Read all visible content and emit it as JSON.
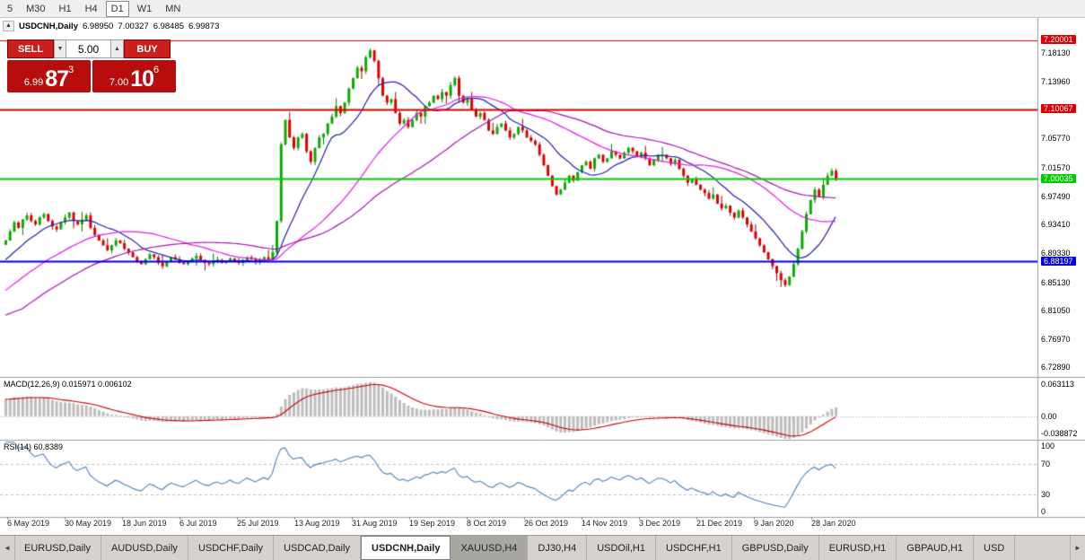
{
  "toolbar": {
    "timeframes": [
      "5",
      "M30",
      "H1",
      "H4",
      "D1",
      "W1",
      "MN"
    ],
    "active": "D1"
  },
  "chart_header": {
    "collapse": "▲",
    "title": "USDCNH,Daily",
    "open": "6.98950",
    "high": "7.00327",
    "low": "6.98485",
    "close": "6.99873"
  },
  "trade_panel": {
    "sell": "SELL",
    "buy": "BUY",
    "volume": "5.00",
    "dec": "▼",
    "inc": "▲",
    "bid": {
      "small": "6.99",
      "big": "87",
      "sup": "3"
    },
    "ask": {
      "small": "7.00",
      "big": "10",
      "sup": "6"
    }
  },
  "indicators": {
    "macd": "MACD(12,26,9) 0.015971 0.006102",
    "rsi": "RSI(14) 60.8389"
  },
  "price_axis": [
    {
      "text": "7.20001",
      "style": "red"
    },
    {
      "text": "7.18130",
      "style": "plain"
    },
    {
      "text": "7.13960",
      "style": "plain"
    },
    {
      "text": "7.10067",
      "style": "red"
    },
    {
      "text": "7.05770",
      "style": "plain"
    },
    {
      "text": "7.01570",
      "style": "plain"
    },
    {
      "text": "7.00035",
      "style": "green"
    },
    {
      "text": "6.97490",
      "style": "plain"
    },
    {
      "text": "6.93410",
      "style": "plain"
    },
    {
      "text": "6.89330",
      "style": "plain"
    },
    {
      "text": "6.88197",
      "style": "blue"
    },
    {
      "text": "6.85130",
      "style": "plain"
    },
    {
      "text": "6.81050",
      "style": "plain"
    },
    {
      "text": "6.76970",
      "style": "plain"
    },
    {
      "text": "6.72890",
      "style": "plain"
    }
  ],
  "macd_axis": {
    "top": "0.063113",
    "zero": "0.00",
    "bottom": "-0.038872"
  },
  "rsi_axis": [
    "100",
    "70",
    "30",
    "0"
  ],
  "dates": [
    "6 May 2019",
    "30 May 2019",
    "18 Jun 2019",
    "6 Jul 2019",
    "25 Jul 2019",
    "13 Aug 2019",
    "31 Aug 2019",
    "19 Sep 2019",
    "8 Oct 2019",
    "26 Oct 2019",
    "14 Nov 2019",
    "3 Dec 2019",
    "21 Dec 2019",
    "9 Jan 2020",
    "28 Jan 2020"
  ],
  "tabs": [
    {
      "label": "EURUSD,Daily",
      "state": "normal"
    },
    {
      "label": "AUDUSD,Daily",
      "state": "normal"
    },
    {
      "label": "USDCHF,Daily",
      "state": "normal"
    },
    {
      "label": "USDCAD,Daily",
      "state": "normal"
    },
    {
      "label": "USDCNH,Daily",
      "state": "active"
    },
    {
      "label": "XAUUSD,H4",
      "state": "dark"
    },
    {
      "label": "DJ30,H4",
      "state": "normal"
    },
    {
      "label": "USDOil,H1",
      "state": "normal"
    },
    {
      "label": "USDCHF,H1",
      "state": "normal"
    },
    {
      "label": "GBPUSD,Daily",
      "state": "normal"
    },
    {
      "label": "EURUSD,H1",
      "state": "normal"
    },
    {
      "label": "GBPAUD,H1",
      "state": "normal"
    },
    {
      "label": "USD",
      "state": "normal"
    }
  ],
  "tab_scroll": {
    "left": "◄",
    "right": "►"
  },
  "colors": {
    "up": "#0caa00",
    "up_stroke": "#067a00",
    "down": "#dd0000",
    "down_stroke": "#a50000",
    "ma_fast": "#2323b8",
    "ma_slow": "#e619e6",
    "ma_slow2": "#a913b0",
    "macd_hist": "#bdbdbd",
    "macd_signal": "#cc0000",
    "rsi": "#4f81bd",
    "hline_red": "#dd0000",
    "hline_green": "#00cc00",
    "hline_blue": "#0000dd",
    "grid": "#c8c8c8",
    "separator": "#a0a0a0"
  },
  "chart_data": {
    "type": "candlestick",
    "symbol": "USDCNH",
    "timeframe": "Daily",
    "last_bar": {
      "open": 6.9895,
      "high": 7.00327,
      "low": 6.98485,
      "close": 6.99873
    },
    "price_range": [
      6.716,
      7.2316
    ],
    "hlines": [
      {
        "price": 7.20001,
        "color": "#dd0000",
        "width": 1
      },
      {
        "price": 7.10067,
        "color": "#dd0000",
        "width": 2
      },
      {
        "price": 7.00035,
        "color": "#00cc00",
        "width": 2
      },
      {
        "price": 6.88197,
        "color": "#0000dd",
        "width": 2
      }
    ],
    "closes": [
      6.912,
      6.925,
      6.938,
      6.93,
      6.942,
      6.948,
      6.94,
      6.935,
      6.945,
      6.95,
      6.94,
      6.932,
      6.928,
      6.938,
      6.945,
      6.952,
      6.94,
      6.935,
      6.942,
      6.948,
      6.93,
      6.92,
      6.912,
      6.905,
      6.898,
      6.905,
      6.912,
      6.908,
      6.9,
      6.895,
      6.888,
      6.882,
      6.878,
      6.885,
      6.892,
      6.888,
      6.88,
      6.875,
      6.882,
      6.888,
      6.885,
      6.88,
      6.878,
      6.882,
      6.886,
      6.89,
      6.884,
      6.88,
      6.878,
      6.882,
      6.884,
      6.88,
      6.882,
      6.886,
      6.882,
      6.88,
      6.884,
      6.888,
      6.885,
      6.882,
      6.885,
      6.888,
      6.885,
      6.895,
      6.94,
      7.05,
      7.085,
      7.06,
      7.045,
      7.06,
      7.065,
      7.04,
      7.025,
      7.045,
      7.06,
      7.065,
      7.08,
      7.09,
      7.105,
      7.095,
      7.11,
      7.13,
      7.145,
      7.16,
      7.155,
      7.175,
      7.185,
      7.17,
      7.145,
      7.12,
      7.11,
      7.115,
      7.095,
      7.08,
      7.085,
      7.075,
      7.085,
      7.095,
      7.09,
      7.105,
      7.11,
      7.12,
      7.115,
      7.125,
      7.12,
      7.135,
      7.145,
      7.12,
      7.11,
      7.115,
      7.1,
      7.09,
      7.095,
      7.085,
      7.07,
      7.065,
      7.075,
      7.08,
      7.07,
      7.06,
      7.065,
      7.075,
      7.07,
      7.06,
      7.055,
      7.05,
      7.035,
      7.02,
      7.005,
      6.99,
      6.978,
      6.985,
      6.995,
      7.005,
      6.998,
      7.01,
      7.02,
      7.025,
      7.015,
      7.03,
      7.035,
      7.025,
      7.03,
      7.04,
      7.035,
      7.03,
      7.038,
      7.045,
      7.04,
      7.032,
      7.038,
      7.03,
      7.02,
      7.028,
      7.035,
      7.035,
      7.03,
      7.022,
      7.028,
      7.015,
      7.005,
      6.995,
      7.0,
      6.992,
      6.985,
      6.98,
      6.972,
      6.978,
      6.965,
      6.958,
      6.962,
      6.952,
      6.945,
      6.955,
      6.945,
      6.935,
      6.925,
      6.915,
      6.905,
      6.895,
      6.885,
      6.875,
      6.865,
      6.855,
      6.848,
      6.86,
      6.878,
      6.9,
      6.925,
      6.95,
      6.97,
      6.985,
      6.975,
      6.992,
      7.005,
      7.012,
      6.999
    ],
    "ma_warmup": {
      "start": 6.7,
      "end": 6.905,
      "bars": 50
    },
    "moving_averages": [
      {
        "period": 13,
        "color": "#2323b8"
      },
      {
        "period": 34,
        "color": "#e619e6"
      },
      {
        "period": 55,
        "color": "#a913b0"
      }
    ],
    "macd": {
      "params": [
        12,
        26,
        9
      ],
      "current_main": 0.015971,
      "current_signal": 0.006102,
      "range": [
        -0.038872,
        0.063113
      ]
    },
    "rsi": {
      "period": 14,
      "current": 60.8389,
      "levels": [
        70,
        30
      ],
      "range": [
        0,
        100
      ]
    }
  }
}
